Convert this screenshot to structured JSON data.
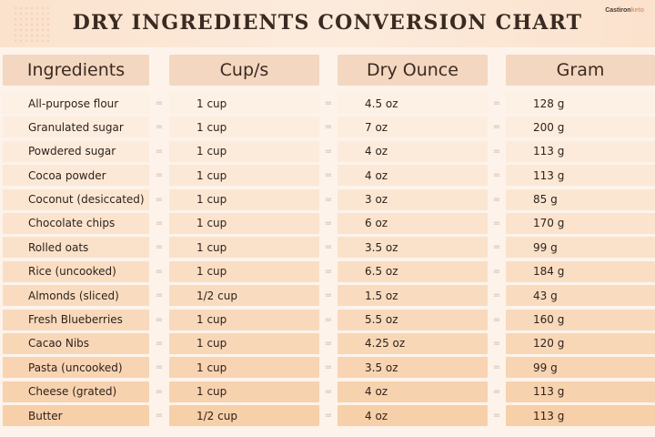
{
  "title": "DRY INGREDIENTS CONVERSION CHART",
  "brand": {
    "part1": "Castiron",
    "part2": "keto"
  },
  "headers": {
    "ingredients": "Ingredients",
    "cups": "Cup/s",
    "dry_ounce": "Dry Ounce",
    "gram": "Gram"
  },
  "equals_sign": "=",
  "colors": {
    "row_start": "#fdf0e4",
    "row_end": "#f7cfa9",
    "header": "#f4d7c0"
  },
  "rows": [
    {
      "ingredient": "All-purpose flour",
      "cups": "1 cup",
      "ounces": "4.5 oz",
      "grams": "128 g"
    },
    {
      "ingredient": "Granulated sugar",
      "cups": "1 cup",
      "ounces": "7 oz",
      "grams": "200 g"
    },
    {
      "ingredient": "Powdered sugar",
      "cups": "1 cup",
      "ounces": "4 oz",
      "grams": "113 g"
    },
    {
      "ingredient": "Cocoa powder",
      "cups": "1 cup",
      "ounces": "4 oz",
      "grams": "113 g"
    },
    {
      "ingredient": "Coconut (desiccated)",
      "cups": "1 cup",
      "ounces": "3 oz",
      "grams": "85 g"
    },
    {
      "ingredient": "Chocolate chips",
      "cups": "1 cup",
      "ounces": "6 oz",
      "grams": "170 g"
    },
    {
      "ingredient": "Rolled oats",
      "cups": "1 cup",
      "ounces": "3.5 oz",
      "grams": "99 g"
    },
    {
      "ingredient": "Rice (uncooked)",
      "cups": "1 cup",
      "ounces": "6.5 oz",
      "grams": "184 g"
    },
    {
      "ingredient": "Almonds (sliced)",
      "cups": "1/2 cup",
      "ounces": "1.5 oz",
      "grams": "43 g"
    },
    {
      "ingredient": "Fresh Blueberries",
      "cups": "1 cup",
      "ounces": "5.5 oz",
      "grams": "160 g"
    },
    {
      "ingredient": "Cacao Nibs",
      "cups": "1 cup",
      "ounces": "4.25 oz",
      "grams": "120 g"
    },
    {
      "ingredient": "Pasta (uncooked)",
      "cups": "1 cup",
      "ounces": "3.5 oz",
      "grams": "99 g"
    },
    {
      "ingredient": "Cheese (grated)",
      "cups": "1 cup",
      "ounces": "4 oz",
      "grams": "113 g"
    },
    {
      "ingredient": "Butter",
      "cups": "1/2 cup",
      "ounces": "4 oz",
      "grams": "113 g"
    }
  ]
}
